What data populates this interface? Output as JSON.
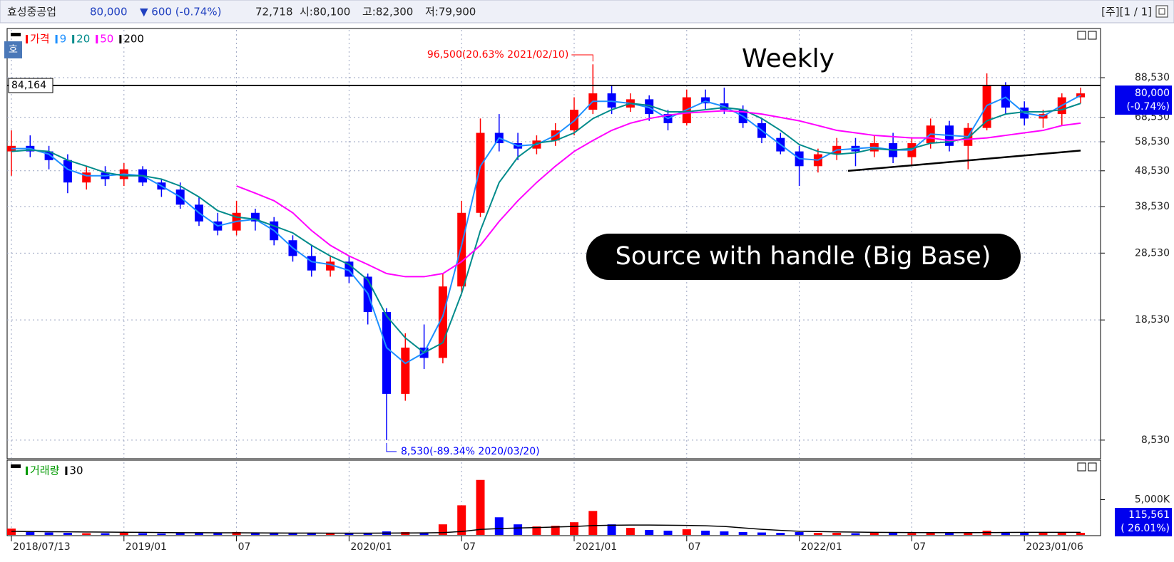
{
  "header": {
    "name": "효성중공업",
    "price": "80,000",
    "change": "▼ 600 (-0.74%)",
    "volume": "72,718",
    "open": "시:80,100",
    "high": "고:82,300",
    "low": "저:79,900",
    "page": "[주][1 / 1]",
    "badge": "호"
  },
  "chart_data": [
    {
      "type": "candlestick",
      "name": "가격",
      "color": "#ff0000",
      "down_color": "#0000ff",
      "title": "Weekly",
      "annotation": "Source with handle (Big Base)",
      "categories": [
        "2018/07/13",
        null,
        null,
        null,
        null,
        null,
        "2019/01",
        null,
        null,
        null,
        null,
        null,
        "07",
        null,
        null,
        null,
        null,
        null,
        "2020/01",
        null,
        null,
        null,
        null,
        null,
        "07",
        null,
        null,
        null,
        null,
        null,
        "2021/01",
        null,
        null,
        null,
        null,
        null,
        "07",
        null,
        null,
        null,
        null,
        null,
        "2022/01",
        null,
        null,
        null,
        null,
        null,
        "07",
        null,
        null,
        null,
        null,
        null,
        "2023/01/06",
        null,
        null,
        null
      ],
      "open": [
        55000,
        57000,
        55000,
        52000,
        45000,
        48000,
        46000,
        49000,
        45000,
        43000,
        39000,
        35000,
        33000,
        37000,
        35000,
        31000,
        28000,
        25500,
        27000,
        24500,
        19500,
        11500,
        15500,
        14500,
        23000,
        37000,
        62000,
        58000,
        56000,
        59000,
        63000,
        72000,
        80000,
        73000,
        77000,
        70000,
        66000,
        78000,
        75000,
        72000,
        66000,
        60000,
        55000,
        50000,
        54000,
        57000,
        55000,
        58000,
        53000,
        58000,
        65000,
        57000,
        64000,
        84000,
        73000,
        68000,
        70000,
        78000
      ],
      "high": [
        63000,
        61000,
        57000,
        54000,
        50000,
        50000,
        51000,
        50000,
        46000,
        45000,
        41000,
        37000,
        40000,
        38000,
        36000,
        32000,
        30000,
        28000,
        28000,
        25000,
        20000,
        17000,
        18000,
        25000,
        40000,
        68000,
        70000,
        62000,
        61000,
        66000,
        78000,
        96500,
        84000,
        80000,
        79000,
        72000,
        82000,
        82000,
        83000,
        74000,
        68000,
        62000,
        57000,
        56000,
        60000,
        60000,
        61000,
        62000,
        60000,
        68000,
        67000,
        66000,
        91000,
        86000,
        76000,
        72000,
        80000,
        83000
      ],
      "low": [
        47000,
        53000,
        49000,
        42000,
        43000,
        44000,
        44000,
        44000,
        41000,
        38000,
        34000,
        32000,
        32000,
        33000,
        30000,
        27000,
        24500,
        24500,
        23500,
        18000,
        8530,
        11000,
        13500,
        14000,
        22000,
        36000,
        55000,
        52000,
        54000,
        57000,
        61000,
        70000,
        70000,
        71000,
        67000,
        63000,
        65000,
        72000,
        70000,
        64000,
        58000,
        54000,
        44000,
        48000,
        52000,
        50000,
        53000,
        51000,
        50000,
        56000,
        55000,
        49000,
        63000,
        70000,
        65000,
        64000,
        65000,
        75000
      ],
      "close": [
        57000,
        55000,
        52000,
        45000,
        48000,
        46000,
        49000,
        45000,
        43000,
        39000,
        35000,
        33000,
        37000,
        35000,
        31000,
        28000,
        25500,
        27000,
        24500,
        19500,
        11500,
        15500,
        14500,
        23000,
        37000,
        62000,
        58000,
        56000,
        59000,
        63000,
        72000,
        80000,
        73000,
        77000,
        70000,
        66000,
        78000,
        75000,
        72000,
        66000,
        60000,
        55000,
        50000,
        54000,
        57000,
        55000,
        58000,
        53000,
        58000,
        65000,
        57000,
        64000,
        84000,
        73000,
        68000,
        70000,
        78000,
        80000
      ],
      "lines": [
        {
          "name": "9",
          "color": "#1e90ff",
          "values": [
            56000,
            56000,
            54000,
            49000,
            47000,
            47000,
            47500,
            47000,
            44000,
            41000,
            37000,
            34000,
            35000,
            35500,
            33000,
            29500,
            27000,
            26500,
            25500,
            22000,
            15500,
            14000,
            15000,
            19000,
            30000,
            50000,
            60000,
            57000,
            57500,
            61000,
            67000,
            76000,
            76000,
            75000,
            73000,
            68000,
            72000,
            76000,
            73500,
            69000,
            63000,
            57500,
            52500,
            52000,
            55500,
            56000,
            56500,
            55500,
            55500,
            61500,
            61000,
            60500,
            74000,
            78000,
            70500,
            69000,
            74000,
            79000
          ]
        },
        {
          "name": "20",
          "color": "#008b8b",
          "values": [
            55000,
            55500,
            55000,
            52000,
            50000,
            48000,
            47000,
            47000,
            46000,
            44000,
            41000,
            37500,
            36000,
            35500,
            34000,
            32500,
            30000,
            28000,
            26500,
            24000,
            19000,
            16500,
            15000,
            16000,
            22000,
            33000,
            45000,
            53000,
            58000,
            59000,
            62000,
            68000,
            72000,
            75000,
            74000,
            71000,
            71000,
            72000,
            73000,
            72000,
            68000,
            63000,
            57500,
            55000,
            54000,
            54500,
            56000,
            55500,
            56000,
            58000,
            58500,
            60000,
            67000,
            70000,
            71000,
            71000,
            72000,
            75000
          ]
        },
        {
          "name": "50",
          "color": "#ff00ff",
          "values": [
            null,
            null,
            null,
            null,
            null,
            null,
            null,
            null,
            null,
            null,
            null,
            null,
            44000,
            42000,
            40000,
            37000,
            33000,
            30000,
            28000,
            26500,
            25000,
            24500,
            24500,
            25000,
            27000,
            30000,
            35000,
            40000,
            45000,
            50000,
            55000,
            59000,
            63000,
            66000,
            68000,
            69500,
            70500,
            71000,
            71500,
            71000,
            70000,
            68500,
            67000,
            65000,
            63000,
            62000,
            61000,
            60500,
            60000,
            60000,
            59000,
            59500,
            60000,
            61000,
            62000,
            63000,
            65000,
            66000
          ]
        },
        {
          "name": "200",
          "color": "#000000",
          "values": [
            null,
            null,
            null,
            null,
            null,
            null,
            null,
            null,
            null,
            null,
            null,
            null,
            null,
            null,
            null,
            null,
            null,
            null,
            null,
            null,
            null,
            null,
            null,
            null,
            null,
            null,
            null,
            null,
            null,
            null,
            null,
            null,
            null,
            null,
            null,
            null,
            null,
            null,
            null,
            null,
            null,
            null,
            null,
            null,
            null,
            null,
            null,
            null,
            null,
            null,
            null,
            null,
            null,
            null,
            null,
            null,
            null,
            null
          ]
        }
      ],
      "ylim": [
        7600,
        120500
      ],
      "log_scale": true,
      "grid": true,
      "yticks": [
        {
          "value": 8530,
          "label": "8,530"
        },
        {
          "value": 18530,
          "label": "18,530"
        },
        {
          "value": 28530,
          "label": "28,530"
        },
        {
          "value": 38530,
          "label": "38,530"
        },
        {
          "value": 48530,
          "label": "48,530"
        },
        {
          "value": 58530,
          "label": "58,530"
        },
        {
          "value": 68530,
          "label": "68,530"
        },
        {
          "value": 88530,
          "label": "88,530"
        }
      ],
      "high_marker": {
        "value": 96500,
        "label": "96,500(20.63% 2021/02/10)"
      },
      "low_marker": {
        "value": 8530,
        "label": "8,530(-89.34% 2020/03/20)"
      },
      "reference_line": {
        "value": 84164,
        "label": "84,164"
      },
      "last_price": {
        "value": 80000,
        "label": "80,000",
        "change": "(-0.74%)"
      },
      "trendline": {
        "x": [
          44.6,
          57
        ],
        "values": [
          48500,
          55300
        ],
        "color": "#000000"
      }
    },
    {
      "type": "bar",
      "name": "거래량",
      "legend_color": "#009900",
      "up_color": "#ff0000",
      "down_color": "#0000ff",
      "values": [
        900000,
        400000,
        350000,
        300000,
        250000,
        250000,
        300000,
        250000,
        200000,
        250000,
        300000,
        250000,
        400000,
        250000,
        200000,
        200000,
        250000,
        200000,
        250000,
        300000,
        500000,
        400000,
        300000,
        1500000,
        4200000,
        7800000,
        2500000,
        1500000,
        1200000,
        1300000,
        1800000,
        3400000,
        1500000,
        1000000,
        700000,
        600000,
        800000,
        600000,
        500000,
        400000,
        350000,
        300000,
        400000,
        300000,
        300000,
        250000,
        300000,
        300000,
        250000,
        400000,
        350000,
        400000,
        600000,
        400000,
        350000,
        300000,
        400000,
        300000
      ],
      "lines": [
        {
          "name": "30",
          "color": "#000000",
          "values": [
            500000,
            480000,
            460000,
            440000,
            420000,
            400000,
            380000,
            360000,
            340000,
            320000,
            310000,
            300000,
            300000,
            290000,
            280000,
            270000,
            260000,
            250000,
            250000,
            250000,
            270000,
            280000,
            290000,
            330000,
            480000,
            780000,
            900000,
            980000,
            1050000,
            1120000,
            1200000,
            1320000,
            1380000,
            1400000,
            1400000,
            1380000,
            1350000,
            1300000,
            1200000,
            1000000,
            800000,
            650000,
            520000,
            480000,
            430000,
            400000,
            370000,
            350000,
            340000,
            330000,
            330000,
            330000,
            340000,
            350000,
            360000,
            360000,
            360000,
            360000
          ]
        }
      ],
      "ylim": [
        0,
        10300000
      ],
      "yticks": [
        {
          "value": 5000000,
          "label": "5,000K"
        }
      ],
      "last_volume": {
        "value": 115561,
        "label": "115,561",
        "change": "( 26.01%)"
      }
    }
  ]
}
